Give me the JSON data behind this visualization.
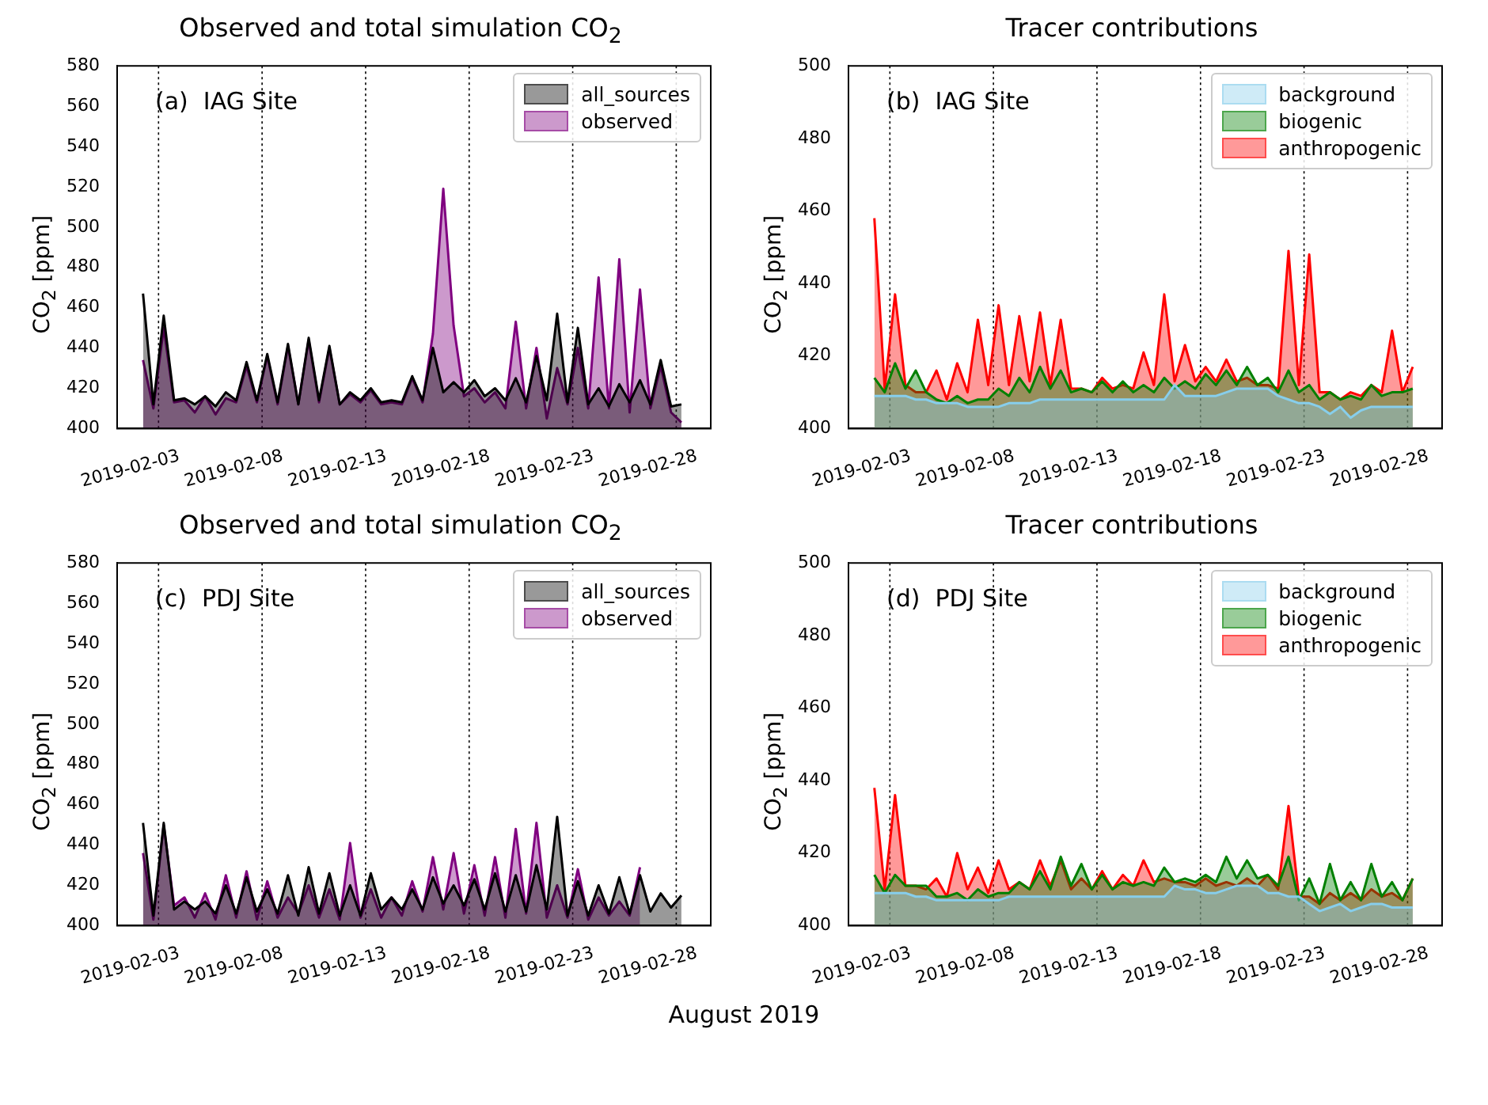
{
  "chart_data": [
    {
      "type": "area",
      "title": "Observed and total simulation CO$_{2}$",
      "ylabel": "CO$_{2}$ [ppm]",
      "annotations": [
        "(a)  IAG Site"
      ],
      "legend": "top right",
      "grid": false,
      "x": [
        "2019-02-01T06:00",
        "2019-02-01T18:00",
        "2019-02-02T06:00",
        "2019-02-02T18:00",
        "2019-02-03T06:00",
        "2019-02-03T18:00",
        "2019-02-04T06:00",
        "2019-02-04T18:00",
        "2019-02-05T06:00",
        "2019-02-05T18:00",
        "2019-02-06T06:00",
        "2019-02-06T18:00",
        "2019-02-07T06:00",
        "2019-02-07T18:00",
        "2019-02-08T06:00",
        "2019-02-08T18:00",
        "2019-02-09T06:00",
        "2019-02-09T18:00",
        "2019-02-10T06:00",
        "2019-02-10T18:00",
        "2019-02-11T06:00",
        "2019-02-11T18:00",
        "2019-02-12T06:00",
        "2019-02-12T18:00",
        "2019-02-13T06:00",
        "2019-02-13T18:00",
        "2019-02-14T06:00",
        "2019-02-14T18:00",
        "2019-02-15T06:00",
        "2019-02-15T18:00",
        "2019-02-16T06:00",
        "2019-02-16T18:00",
        "2019-02-17T06:00",
        "2019-02-17T18:00",
        "2019-02-18T06:00",
        "2019-02-18T18:00",
        "2019-02-19T06:00",
        "2019-02-19T18:00",
        "2019-02-20T06:00",
        "2019-02-20T18:00",
        "2019-02-21T06:00",
        "2019-02-21T18:00",
        "2019-02-22T06:00",
        "2019-02-22T18:00",
        "2019-02-23T06:00",
        "2019-02-23T18:00",
        "2019-02-24T06:00",
        "2019-02-24T18:00",
        "2019-02-25T06:00",
        "2019-02-25T18:00",
        "2019-02-26T06:00",
        "2019-02-26T18:00",
        "2019-02-27T06:00"
      ],
      "series": [
        {
          "name": "all_sources",
          "color": "#000000",
          "values": [
            467,
            412,
            456,
            414,
            415,
            412,
            416,
            411,
            418,
            414,
            433,
            414,
            437,
            413,
            442,
            412,
            445,
            414,
            441,
            412,
            418,
            414,
            420,
            413,
            414,
            413,
            426,
            414,
            440,
            418,
            423,
            418,
            424,
            416,
            420,
            414,
            425,
            413,
            436,
            414,
            457,
            413,
            450,
            412,
            420,
            411,
            422,
            413,
            424,
            412,
            434,
            411,
            412
          ]
        },
        {
          "name": "observed",
          "color": "#800080",
          "values": [
            434,
            410,
            450,
            413,
            414,
            408,
            416,
            407,
            415,
            413,
            431,
            413,
            436,
            412,
            441,
            412,
            444,
            413,
            440,
            412,
            417,
            413,
            419,
            412,
            413,
            412,
            425,
            413,
            447,
            519,
            451,
            416,
            420,
            413,
            418,
            410,
            453,
            410,
            440,
            405,
            430,
            412,
            440,
            410,
            475,
            410,
            484,
            408,
            469,
            410,
            431,
            408,
            403
          ]
        }
      ],
      "xlim": [
        "2019-01-31",
        "2019-02-28T16:00"
      ],
      "xticks": [
        "2019-02-03",
        "2019-02-08",
        "2019-02-13",
        "2019-02-18",
        "2019-02-23",
        "2019-02-28"
      ],
      "ylim": [
        400,
        580
      ],
      "yticks": [
        400,
        420,
        440,
        460,
        480,
        500,
        520,
        540,
        560,
        580
      ],
      "ref_lines": [
        {
          "axis": "x",
          "value": "2019-02-02",
          "color": "#000000",
          "line_style": "dotted"
        },
        {
          "axis": "x",
          "value": "2019-02-07",
          "color": "#000000",
          "line_style": "dotted"
        },
        {
          "axis": "x",
          "value": "2019-02-12",
          "color": "#000000",
          "line_style": "dotted"
        },
        {
          "axis": "x",
          "value": "2019-02-17",
          "color": "#000000",
          "line_style": "dotted"
        },
        {
          "axis": "x",
          "value": "2019-02-22",
          "color": "#000000",
          "line_style": "dotted"
        },
        {
          "axis": "x",
          "value": "2019-02-27",
          "color": "#000000",
          "line_style": "dotted"
        }
      ]
    },
    {
      "type": "area",
      "title": "Tracer contributions",
      "ylabel": "CO$_{2}$ [ppm]",
      "annotations": [
        "(b)  IAG Site"
      ],
      "legend": "top right",
      "grid": false,
      "x": [
        "2019-02-01T06:00",
        "2019-02-01T18:00",
        "2019-02-02T06:00",
        "2019-02-02T18:00",
        "2019-02-03T06:00",
        "2019-02-03T18:00",
        "2019-02-04T06:00",
        "2019-02-04T18:00",
        "2019-02-05T06:00",
        "2019-02-05T18:00",
        "2019-02-06T06:00",
        "2019-02-06T18:00",
        "2019-02-07T06:00",
        "2019-02-07T18:00",
        "2019-02-08T06:00",
        "2019-02-08T18:00",
        "2019-02-09T06:00",
        "2019-02-09T18:00",
        "2019-02-10T06:00",
        "2019-02-10T18:00",
        "2019-02-11T06:00",
        "2019-02-11T18:00",
        "2019-02-12T06:00",
        "2019-02-12T18:00",
        "2019-02-13T06:00",
        "2019-02-13T18:00",
        "2019-02-14T06:00",
        "2019-02-14T18:00",
        "2019-02-15T06:00",
        "2019-02-15T18:00",
        "2019-02-16T06:00",
        "2019-02-16T18:00",
        "2019-02-17T06:00",
        "2019-02-17T18:00",
        "2019-02-18T06:00",
        "2019-02-18T18:00",
        "2019-02-19T06:00",
        "2019-02-19T18:00",
        "2019-02-20T06:00",
        "2019-02-20T18:00",
        "2019-02-21T06:00",
        "2019-02-21T18:00",
        "2019-02-22T06:00",
        "2019-02-22T18:00",
        "2019-02-23T06:00",
        "2019-02-23T18:00",
        "2019-02-24T06:00",
        "2019-02-24T18:00",
        "2019-02-25T06:00",
        "2019-02-25T18:00",
        "2019-02-26T06:00",
        "2019-02-26T18:00",
        "2019-02-27T06:00"
      ],
      "series": [
        {
          "name": "background",
          "color": "#87ceeb",
          "values": [
            409,
            409,
            409,
            409,
            408,
            408,
            407,
            407,
            407,
            406,
            406,
            406,
            406,
            407,
            407,
            407,
            408,
            408,
            408,
            408,
            408,
            408,
            408,
            408,
            408,
            408,
            408,
            408,
            408,
            412,
            409,
            409,
            409,
            409,
            410,
            411,
            411,
            411,
            411,
            409,
            408,
            407,
            407,
            406,
            404,
            406,
            403,
            405,
            406,
            406,
            406,
            406,
            406
          ]
        },
        {
          "name": "biogenic",
          "color": "#008000",
          "values": [
            414,
            410,
            418,
            411,
            416,
            410,
            408,
            407,
            409,
            407,
            408,
            408,
            411,
            409,
            414,
            410,
            417,
            411,
            416,
            410,
            411,
            410,
            413,
            410,
            413,
            410,
            412,
            410,
            414,
            411,
            413,
            411,
            415,
            412,
            416,
            412,
            417,
            412,
            414,
            410,
            416,
            410,
            412,
            408,
            410,
            408,
            409,
            408,
            412,
            409,
            410,
            410,
            411
          ]
        },
        {
          "name": "anthropogenic",
          "color": "#ff0000",
          "values": [
            458,
            411,
            437,
            412,
            410,
            410,
            416,
            408,
            418,
            410,
            430,
            412,
            434,
            412,
            431,
            413,
            432,
            412,
            430,
            411,
            411,
            410,
            414,
            411,
            412,
            411,
            421,
            412,
            437,
            413,
            423,
            413,
            417,
            413,
            419,
            413,
            414,
            412,
            412,
            411,
            449,
            412,
            448,
            410,
            410,
            408,
            410,
            409,
            412,
            410,
            427,
            410,
            417
          ]
        }
      ],
      "xlim": [
        "2019-01-31",
        "2019-02-28T16:00"
      ],
      "xticks": [
        "2019-02-03",
        "2019-02-08",
        "2019-02-13",
        "2019-02-18",
        "2019-02-23",
        "2019-02-28"
      ],
      "ylim": [
        400,
        500
      ],
      "yticks": [
        400,
        420,
        440,
        460,
        480,
        500
      ],
      "ref_lines": [
        {
          "axis": "x",
          "value": "2019-02-02",
          "color": "#000000",
          "line_style": "dotted"
        },
        {
          "axis": "x",
          "value": "2019-02-07",
          "color": "#000000",
          "line_style": "dotted"
        },
        {
          "axis": "x",
          "value": "2019-02-12",
          "color": "#000000",
          "line_style": "dotted"
        },
        {
          "axis": "x",
          "value": "2019-02-17",
          "color": "#000000",
          "line_style": "dotted"
        },
        {
          "axis": "x",
          "value": "2019-02-22",
          "color": "#000000",
          "line_style": "dotted"
        },
        {
          "axis": "x",
          "value": "2019-02-27",
          "color": "#000000",
          "line_style": "dotted"
        }
      ]
    },
    {
      "type": "area",
      "title": "Observed and total simulation CO$_{2}$",
      "ylabel": "CO$_{2}$ [ppm]",
      "xlabel": "August 2019",
      "annotations": [
        "(c)  PDJ Site"
      ],
      "legend": "top right",
      "grid": false,
      "x": [
        "2019-02-01T06:00",
        "2019-02-01T18:00",
        "2019-02-02T06:00",
        "2019-02-02T18:00",
        "2019-02-03T06:00",
        "2019-02-03T18:00",
        "2019-02-04T06:00",
        "2019-02-04T18:00",
        "2019-02-05T06:00",
        "2019-02-05T18:00",
        "2019-02-06T06:00",
        "2019-02-06T18:00",
        "2019-02-07T06:00",
        "2019-02-07T18:00",
        "2019-02-08T06:00",
        "2019-02-08T18:00",
        "2019-02-09T06:00",
        "2019-02-09T18:00",
        "2019-02-10T06:00",
        "2019-02-10T18:00",
        "2019-02-11T06:00",
        "2019-02-11T18:00",
        "2019-02-12T06:00",
        "2019-02-12T18:00",
        "2019-02-13T06:00",
        "2019-02-13T18:00",
        "2019-02-14T06:00",
        "2019-02-14T18:00",
        "2019-02-15T06:00",
        "2019-02-15T18:00",
        "2019-02-16T06:00",
        "2019-02-16T18:00",
        "2019-02-17T06:00",
        "2019-02-17T18:00",
        "2019-02-18T06:00",
        "2019-02-18T18:00",
        "2019-02-19T06:00",
        "2019-02-19T18:00",
        "2019-02-20T06:00",
        "2019-02-20T18:00",
        "2019-02-21T06:00",
        "2019-02-21T18:00",
        "2019-02-22T06:00",
        "2019-02-22T18:00",
        "2019-02-23T06:00",
        "2019-02-23T18:00",
        "2019-02-24T06:00",
        "2019-02-24T18:00",
        "2019-02-25T06:00",
        "2019-02-25T18:00",
        "2019-02-26T06:00",
        "2019-02-26T18:00",
        "2019-02-27T06:00"
      ],
      "series": [
        {
          "name": "all_sources",
          "color": "#000000",
          "values": [
            451,
            405,
            451,
            408,
            412,
            408,
            412,
            406,
            420,
            406,
            424,
            407,
            418,
            406,
            425,
            405,
            429,
            406,
            426,
            405,
            420,
            405,
            426,
            408,
            414,
            408,
            418,
            408,
            424,
            411,
            420,
            410,
            423,
            408,
            426,
            407,
            425,
            407,
            430,
            408,
            454,
            405,
            422,
            405,
            420,
            406,
            424,
            406,
            425,
            407,
            416,
            409,
            415
          ]
        },
        {
          "name": "observed",
          "color": "#800080",
          "values": [
            436,
            403,
            450,
            410,
            414,
            404,
            416,
            403,
            425,
            404,
            427,
            403,
            422,
            404,
            414,
            406,
            420,
            404,
            418,
            403,
            441,
            404,
            418,
            404,
            414,
            405,
            422,
            407,
            434,
            408,
            436,
            406,
            430,
            405,
            434,
            404,
            448,
            406,
            451,
            404,
            420,
            404,
            428,
            403,
            414,
            405,
            412,
            405,
            429,
            null,
            null,
            null,
            null
          ]
        }
      ],
      "xlim": [
        "2019-01-31",
        "2019-02-28T16:00"
      ],
      "xticks": [
        "2019-02-03",
        "2019-02-08",
        "2019-02-13",
        "2019-02-18",
        "2019-02-23",
        "2019-02-28"
      ],
      "ylim": [
        400,
        580
      ],
      "yticks": [
        400,
        420,
        440,
        460,
        480,
        500,
        520,
        540,
        560,
        580
      ],
      "ref_lines": [
        {
          "axis": "x",
          "value": "2019-02-02",
          "color": "#000000",
          "line_style": "dotted"
        },
        {
          "axis": "x",
          "value": "2019-02-07",
          "color": "#000000",
          "line_style": "dotted"
        },
        {
          "axis": "x",
          "value": "2019-02-12",
          "color": "#000000",
          "line_style": "dotted"
        },
        {
          "axis": "x",
          "value": "2019-02-17",
          "color": "#000000",
          "line_style": "dotted"
        },
        {
          "axis": "x",
          "value": "2019-02-22",
          "color": "#000000",
          "line_style": "dotted"
        },
        {
          "axis": "x",
          "value": "2019-02-27",
          "color": "#000000",
          "line_style": "dotted"
        }
      ]
    },
    {
      "type": "area",
      "title": "Tracer contributions",
      "ylabel": "CO$_{2}$ [ppm]",
      "annotations": [
        "(d)  PDJ Site"
      ],
      "legend": "top right",
      "grid": false,
      "x": [
        "2019-02-01T06:00",
        "2019-02-01T18:00",
        "2019-02-02T06:00",
        "2019-02-02T18:00",
        "2019-02-03T06:00",
        "2019-02-03T18:00",
        "2019-02-04T06:00",
        "2019-02-04T18:00",
        "2019-02-05T06:00",
        "2019-02-05T18:00",
        "2019-02-06T06:00",
        "2019-02-06T18:00",
        "2019-02-07T06:00",
        "2019-02-07T18:00",
        "2019-02-08T06:00",
        "2019-02-08T18:00",
        "2019-02-09T06:00",
        "2019-02-09T18:00",
        "2019-02-10T06:00",
        "2019-02-10T18:00",
        "2019-02-11T06:00",
        "2019-02-11T18:00",
        "2019-02-12T06:00",
        "2019-02-12T18:00",
        "2019-02-13T06:00",
        "2019-02-13T18:00",
        "2019-02-14T06:00",
        "2019-02-14T18:00",
        "2019-02-15T06:00",
        "2019-02-15T18:00",
        "2019-02-16T06:00",
        "2019-02-16T18:00",
        "2019-02-17T06:00",
        "2019-02-17T18:00",
        "2019-02-18T06:00",
        "2019-02-18T18:00",
        "2019-02-19T06:00",
        "2019-02-19T18:00",
        "2019-02-20T06:00",
        "2019-02-20T18:00",
        "2019-02-21T06:00",
        "2019-02-21T18:00",
        "2019-02-22T06:00",
        "2019-02-22T18:00",
        "2019-02-23T06:00",
        "2019-02-23T18:00",
        "2019-02-24T06:00",
        "2019-02-24T18:00",
        "2019-02-25T06:00",
        "2019-02-25T18:00",
        "2019-02-26T06:00",
        "2019-02-26T18:00",
        "2019-02-27T06:00"
      ],
      "series": [
        {
          "name": "background",
          "color": "#87ceeb",
          "values": [
            409,
            409,
            409,
            409,
            408,
            408,
            407,
            407,
            407,
            407,
            407,
            407,
            407,
            408,
            408,
            408,
            408,
            408,
            408,
            408,
            408,
            408,
            408,
            408,
            408,
            408,
            408,
            408,
            408,
            411,
            410,
            410,
            409,
            409,
            410,
            411,
            411,
            411,
            409,
            409,
            408,
            408,
            406,
            404,
            405,
            406,
            404,
            405,
            406,
            406,
            405,
            405,
            405
          ]
        },
        {
          "name": "biogenic",
          "color": "#008000",
          "values": [
            414,
            409,
            414,
            411,
            411,
            411,
            408,
            408,
            409,
            407,
            410,
            408,
            409,
            409,
            412,
            410,
            415,
            410,
            419,
            411,
            417,
            410,
            414,
            410,
            412,
            411,
            412,
            411,
            416,
            412,
            413,
            412,
            414,
            412,
            419,
            413,
            418,
            413,
            414,
            411,
            419,
            407,
            413,
            406,
            417,
            407,
            412,
            407,
            417,
            408,
            412,
            407,
            413
          ]
        },
        {
          "name": "anthropogenic",
          "color": "#ff0000",
          "values": [
            438,
            410,
            436,
            411,
            411,
            410,
            413,
            408,
            420,
            410,
            416,
            409,
            418,
            410,
            412,
            410,
            418,
            411,
            418,
            410,
            413,
            410,
            415,
            410,
            414,
            411,
            418,
            412,
            413,
            412,
            412,
            411,
            413,
            411,
            412,
            411,
            413,
            411,
            414,
            410,
            433,
            408,
            408,
            406,
            409,
            407,
            409,
            407,
            410,
            408,
            409,
            407,
            413
          ]
        }
      ],
      "xlim": [
        "2019-01-31",
        "2019-02-28T16:00"
      ],
      "xticks": [
        "2019-02-03",
        "2019-02-08",
        "2019-02-13",
        "2019-02-18",
        "2019-02-23",
        "2019-02-28"
      ],
      "ylim": [
        400,
        500
      ],
      "yticks": [
        400,
        420,
        440,
        460,
        480,
        500
      ],
      "ref_lines": [
        {
          "axis": "x",
          "value": "2019-02-02",
          "color": "#000000",
          "line_style": "dotted"
        },
        {
          "axis": "x",
          "value": "2019-02-07",
          "color": "#000000",
          "line_style": "dotted"
        },
        {
          "axis": "x",
          "value": "2019-02-12",
          "color": "#000000",
          "line_style": "dotted"
        },
        {
          "axis": "x",
          "value": "2019-02-17",
          "color": "#000000",
          "line_style": "dotted"
        },
        {
          "axis": "x",
          "value": "2019-02-22",
          "color": "#000000",
          "line_style": "dotted"
        },
        {
          "axis": "x",
          "value": "2019-02-27",
          "color": "#000000",
          "line_style": "dotted"
        }
      ]
    }
  ]
}
